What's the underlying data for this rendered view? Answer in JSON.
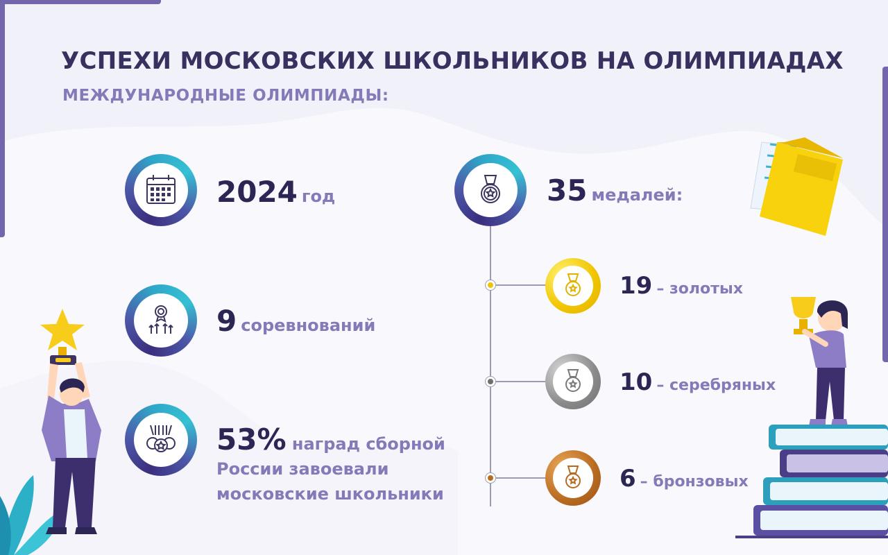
{
  "header": {
    "title": "УСПЕХИ МОСКОВСКИХ ШКОЛЬНИКОВ НА ОЛИМПИАДАХ",
    "subtitle": "МЕЖДУНАРОДНЫЕ ОЛИМПИАДЫ:"
  },
  "left_stats": {
    "year": {
      "value": "2024",
      "unit": "год",
      "icon": "calendar-icon"
    },
    "competitions": {
      "value": "9",
      "unit": "соревнований",
      "icon": "award-growth-icon"
    },
    "share": {
      "value": "53%",
      "text_line1": "наград сборной",
      "text_line2": "России завоевали",
      "text_line3": "московские школьники",
      "icon": "medals-group-icon"
    }
  },
  "right_stats": {
    "total": {
      "value": "35",
      "unit": "медалей:",
      "icon": "medal-icon"
    },
    "gold": {
      "value": "19",
      "label": "– золотых",
      "color": "#f0c400"
    },
    "silver": {
      "value": "10",
      "label": "– серебряных",
      "color": "#8a8a8a"
    },
    "bronze": {
      "value": "6",
      "label": "– бронзовых",
      "color": "#b86a21"
    }
  },
  "colors": {
    "title": "#38305e",
    "accent_purple": "#7466ad",
    "text_muted": "#857ab8",
    "ring_teal": "#35c1d3"
  }
}
